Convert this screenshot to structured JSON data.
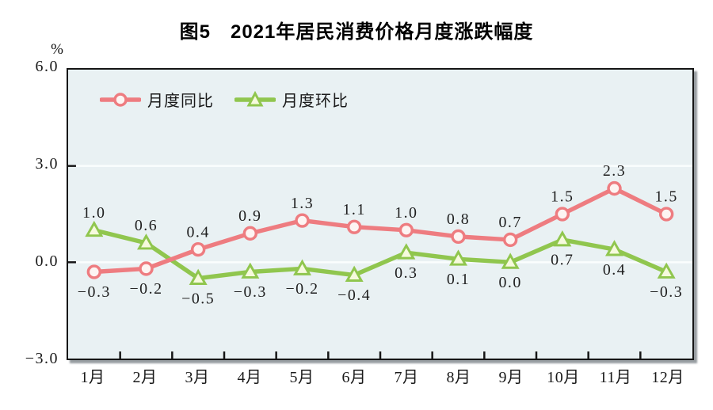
{
  "chart_data": {
    "type": "line",
    "title": "图5　2021年居民消费价格月度涨跌幅度",
    "y_unit": "%",
    "categories": [
      "1月",
      "2月",
      "3月",
      "4月",
      "5月",
      "6月",
      "7月",
      "8月",
      "9月",
      "10月",
      "11月",
      "12月"
    ],
    "series": [
      {
        "name": "月度同比",
        "marker": "circle",
        "color": "#ee7c80",
        "marker_fill": "#fdf4f2",
        "values": [
          -0.3,
          -0.2,
          0.4,
          0.9,
          1.3,
          1.1,
          1.0,
          0.8,
          0.7,
          1.5,
          2.3,
          1.5
        ],
        "label_side": [
          "below",
          "below",
          "above",
          "above",
          "above",
          "above",
          "above",
          "above",
          "above",
          "above",
          "above",
          "above"
        ]
      },
      {
        "name": "月度环比",
        "marker": "triangle",
        "color": "#90c64e",
        "marker_fill": "#f6fadd",
        "values": [
          1.0,
          0.6,
          -0.5,
          -0.3,
          -0.2,
          -0.4,
          0.3,
          0.1,
          0.0,
          0.7,
          0.4,
          -0.3
        ],
        "label_side": [
          "above",
          "above",
          "below",
          "below",
          "below",
          "below",
          "below",
          "below",
          "below",
          "below",
          "below",
          "below"
        ]
      }
    ],
    "ylim": [
      -3.0,
      6.0
    ],
    "y_ticks": [
      6.0,
      3.0,
      0.0,
      -3.0
    ],
    "gridlines": [
      3.0,
      0.0
    ],
    "grid": "horizontal-white",
    "legend_position": "top-left-inside",
    "plot_bg": "#e9f1f3",
    "grid_color": "#fafdfd",
    "axis_color": "#151515"
  }
}
